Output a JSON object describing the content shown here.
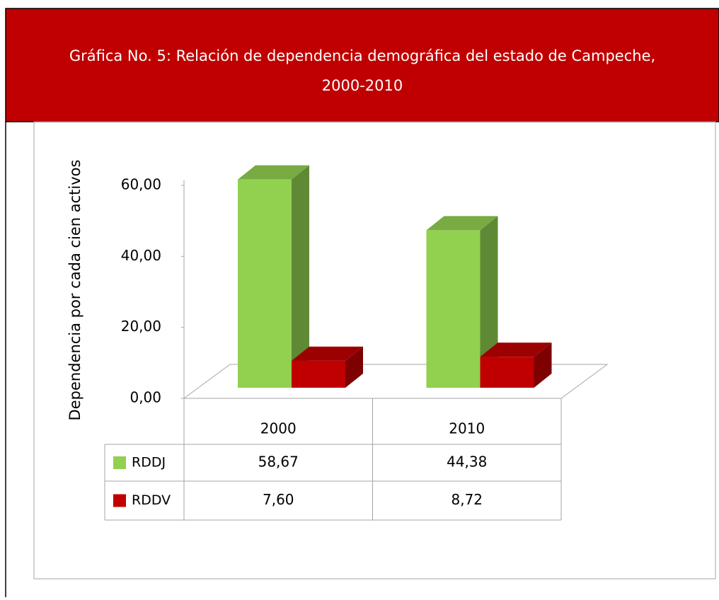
{
  "chart_data": {
    "type": "bar3d",
    "title": "Gráfica No.  5: Relación de dependencia demográfica del estado de Campeche,",
    "subtitle": "2000-2010",
    "y_label": "Dependencia por cada cien activos",
    "categories": [
      "2000",
      "2010"
    ],
    "series": [
      {
        "name": "RDDJ",
        "color": "#92d050",
        "values": [
          58.67,
          44.38
        ],
        "value_labels": [
          "58,67",
          "44,38"
        ]
      },
      {
        "name": "RDDV",
        "color": "#c00000",
        "values": [
          7.6,
          8.72
        ],
        "value_labels": [
          "7,60",
          "8,72"
        ]
      }
    ],
    "ylim": [
      0,
      60
    ],
    "yticks": [
      {
        "value": 0,
        "label": "0,00"
      },
      {
        "value": 20,
        "label": "20,00"
      },
      {
        "value": 40,
        "label": "40,00"
      },
      {
        "value": 60,
        "label": "60,00"
      }
    ],
    "data_table": true
  }
}
